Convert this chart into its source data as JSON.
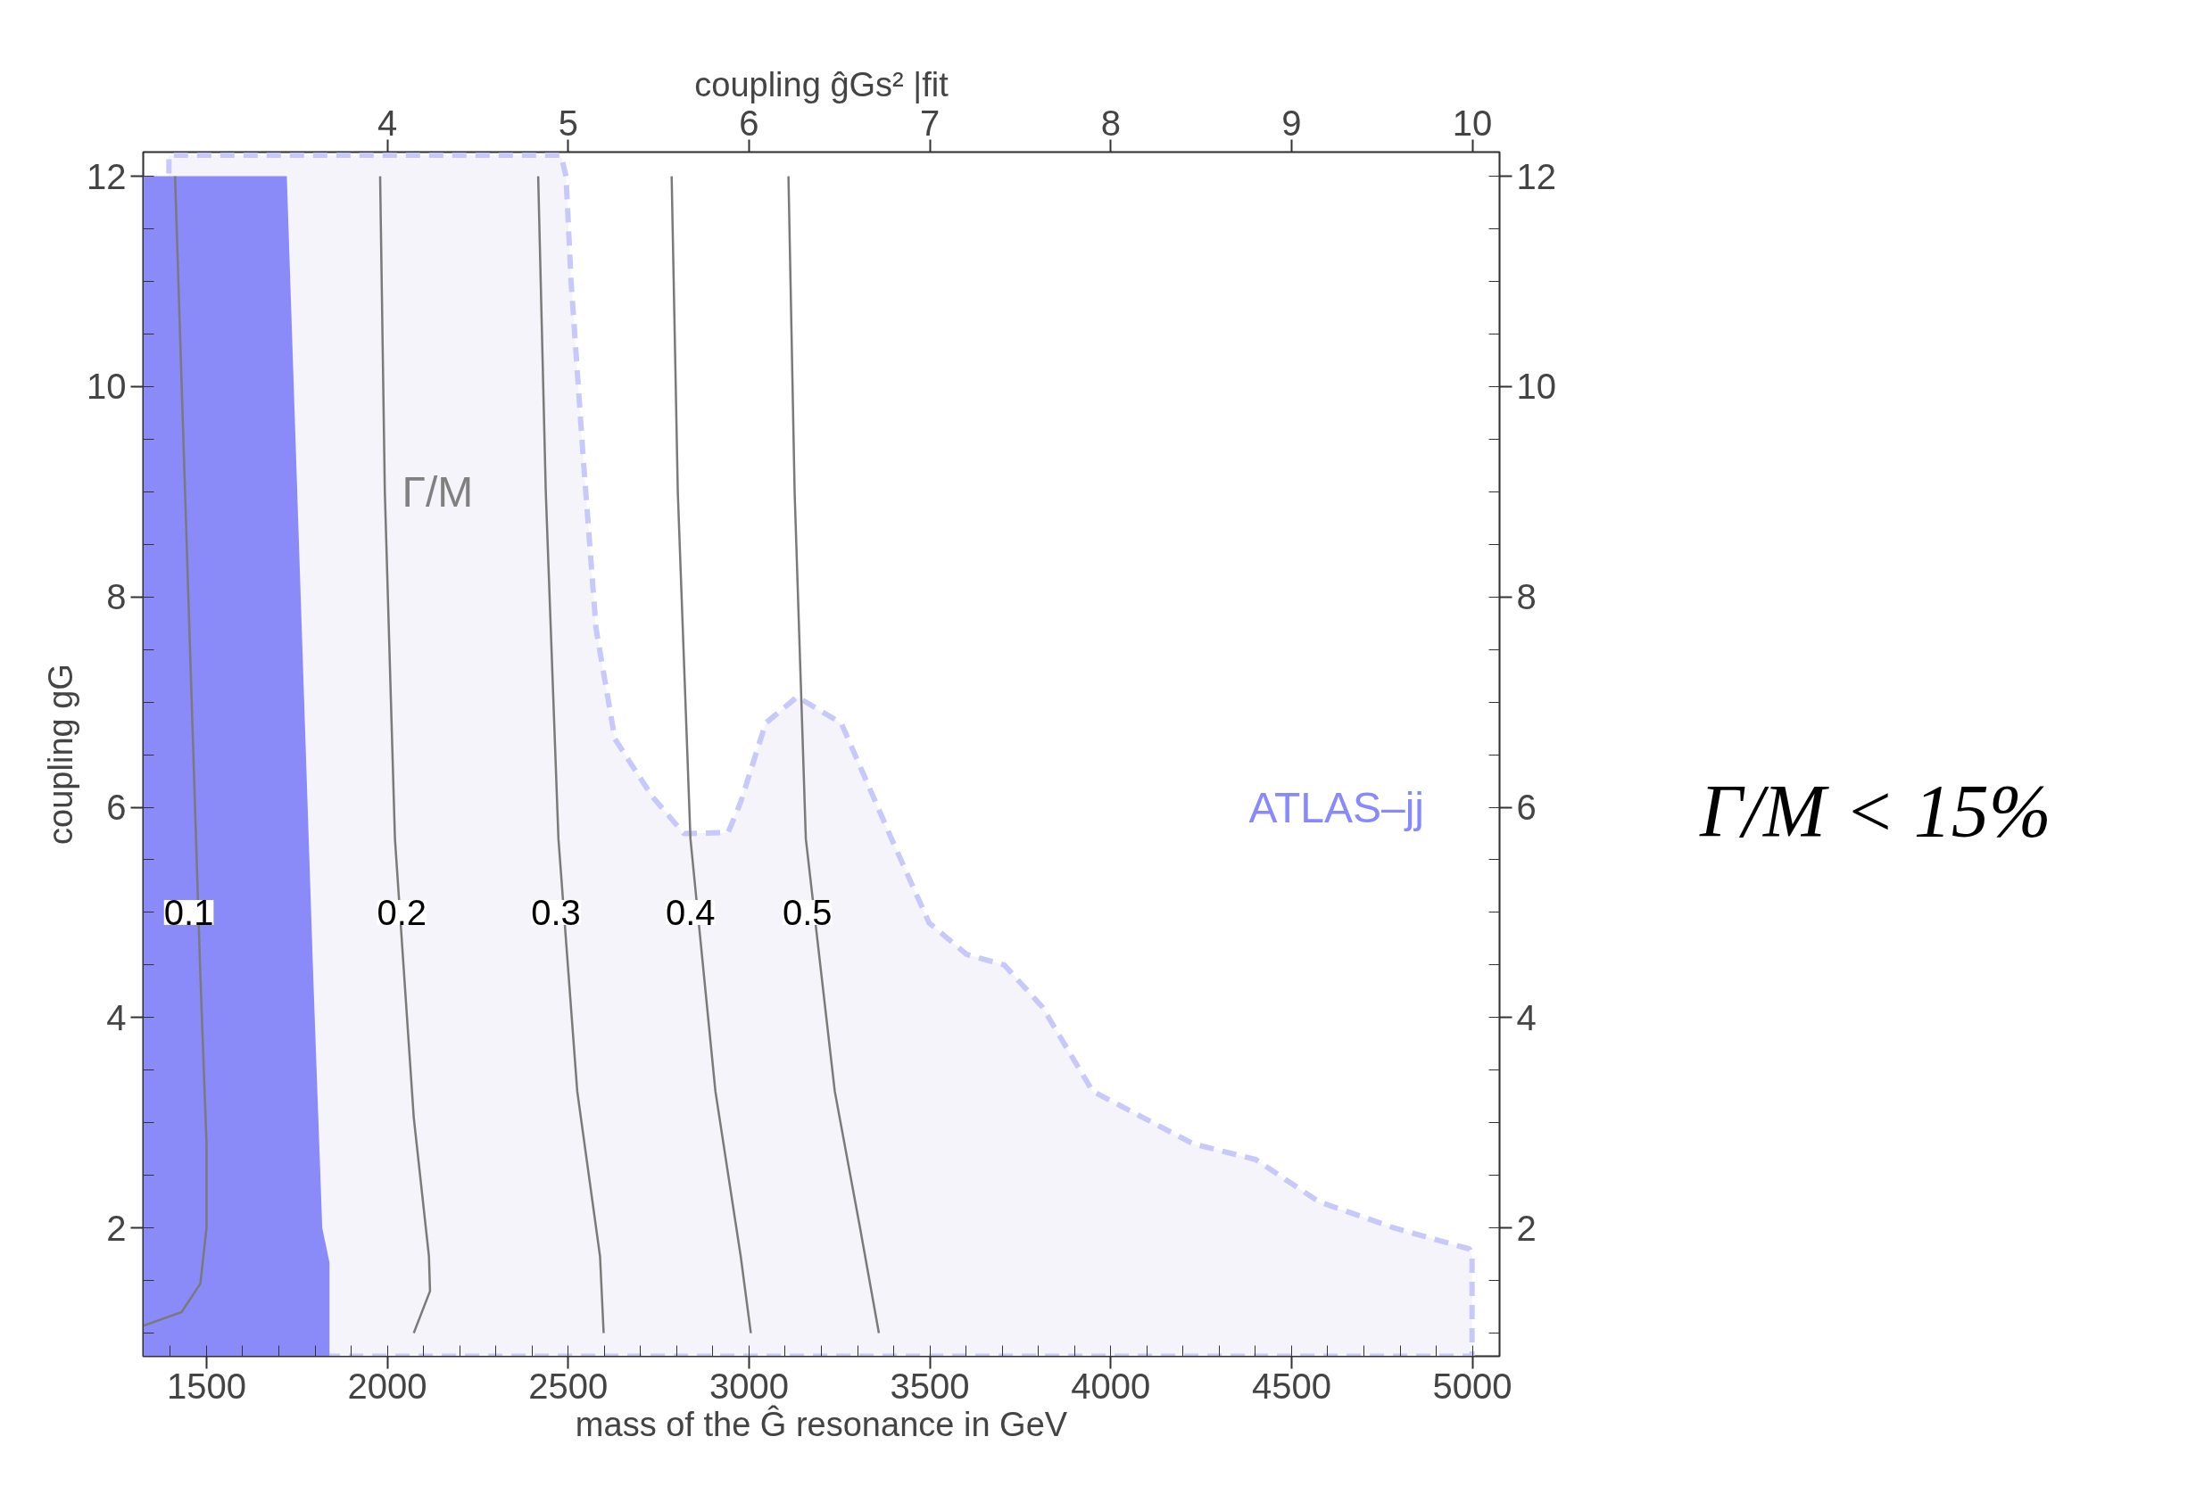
{
  "chart_data": {
    "type": "line",
    "xlabel": "mass of the Ĝ resonance in GeV",
    "ylabel": "coupling gG",
    "x2label": "coupling ĝGs² |fit",
    "xlim": [
      1325,
      5075
    ],
    "xticks": [
      1500,
      2000,
      2500,
      3000,
      3500,
      4000,
      4500,
      5000
    ],
    "x2lim": [
      2.65,
      10.15
    ],
    "x2ticks": [
      4,
      5,
      6,
      7,
      8,
      9,
      10
    ],
    "ylim": [
      0.78,
      12.23
    ],
    "yticks": [
      2,
      4,
      6,
      8,
      10,
      12
    ],
    "y2lim": [
      0.78,
      12.23
    ],
    "y2ticks": [
      2,
      4,
      6,
      8,
      10,
      12
    ],
    "grid": false,
    "series": [
      {
        "type": "area",
        "color": "#f4f4fa",
        "line_style": "dashed",
        "x": [
          1396,
          2480,
          2494,
          2508,
          2542,
          2577,
          2629,
          2733,
          2820,
          2942,
          2977,
          3046,
          3133,
          3255,
          3394,
          3498,
          3602,
          3706,
          3811,
          3950,
          4089,
          4228,
          4401,
          4575,
          4784,
          4992,
          4999
        ],
        "values": [
          12.2,
          12.2,
          12.0,
          11.0,
          9.3,
          7.7,
          6.65,
          6.1,
          5.75,
          5.76,
          6.05,
          6.8,
          7.05,
          6.8,
          5.7,
          4.9,
          4.6,
          4.5,
          4.1,
          3.3,
          3.05,
          2.8,
          2.65,
          2.25,
          2.0,
          1.8,
          1.73
        ]
      },
      {
        "type": "area",
        "color": "#8a8af8",
        "x": [
          1325,
          1722,
          1795,
          1820,
          1840
        ],
        "values": [
          12,
          12,
          4.4,
          2.0,
          1.67
        ]
      },
      {
        "color": "#7a7a7a",
        "x": [
          1413,
          1483,
          1500,
          1500,
          1483,
          1431,
          1325
        ],
        "values": [
          12,
          4.4,
          2.8,
          2.0,
          1.47,
          1.2,
          1.07
        ]
      },
      {
        "color": "#7a7a7a",
        "x": [
          1980,
          1993,
          2021,
          2073,
          2115,
          2118,
          2073
        ],
        "values": [
          12,
          9.0,
          5.7,
          3.05,
          1.73,
          1.4,
          1.0
        ]
      },
      {
        "color": "#7a7a7a",
        "x": [
          2417,
          2438,
          2473,
          2525,
          2588,
          2598
        ],
        "values": [
          12,
          9.0,
          5.7,
          3.3,
          1.73,
          1.0
        ]
      },
      {
        "color": "#7a7a7a",
        "x": [
          2786,
          2803,
          2838,
          2907,
          2977,
          3005
        ],
        "values": [
          12,
          9.0,
          5.7,
          3.3,
          1.73,
          1.0
        ]
      },
      {
        "color": "#7a7a7a",
        "x": [
          3109,
          3126,
          3157,
          3237,
          3307,
          3359
        ],
        "values": [
          12,
          9.0,
          5.7,
          3.3,
          2.0,
          1.0
        ]
      }
    ],
    "annotations": [
      "0.1",
      "0.2",
      "0.3",
      "0.4",
      "0.5",
      "Γ/M",
      "ATLAS–jj",
      "Γ/M < 15%"
    ]
  }
}
